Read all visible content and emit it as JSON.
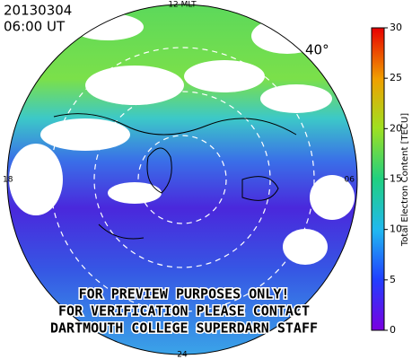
{
  "header": {
    "date": "20130304",
    "time": "06:00 UT"
  },
  "map": {
    "top_label": "12 MLT",
    "left_label": "18",
    "right_label": "06",
    "bottom_label": "24",
    "latitude_label": "40°"
  },
  "colorbar": {
    "label": "Total Electron Content [TECU]",
    "range": [
      0,
      30
    ],
    "ticks": [
      0,
      5,
      10,
      15,
      20,
      25,
      30
    ]
  },
  "watermark": [
    "FOR PREVIEW PURPOSES ONLY!",
    "FOR VERIFICATION PLEASE CONTACT",
    "DARTMOUTH COLLEGE SUPERDARN STAFF"
  ]
}
